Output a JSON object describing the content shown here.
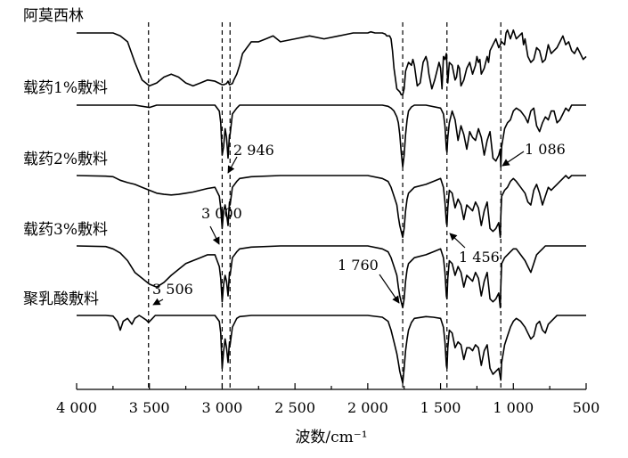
{
  "chart_data": {
    "type": "line",
    "xlabel": "波数/cm⁻¹",
    "xlim": [
      4000,
      500
    ],
    "x_reversed": true,
    "xticks": [
      4000,
      3500,
      3000,
      2500,
      2000,
      1500,
      1000,
      500
    ],
    "xtick_labels": [
      "4 000",
      "3 500",
      "3 000",
      "2 500",
      "2 000",
      "1 500",
      "1 000",
      "500"
    ],
    "y_axis_shown": false,
    "reference_lines": [
      3506,
      3000,
      2946,
      1760,
      1456,
      1086
    ],
    "annotations": [
      {
        "text": "2 946",
        "x": 2946,
        "series": "载药2%敷料"
      },
      {
        "text": "1 086",
        "x": 1086,
        "series": "载药2%敷料"
      },
      {
        "text": "3 000",
        "x": 3000,
        "series": "载药3%敷料"
      },
      {
        "text": "1 456",
        "x": 1456,
        "series": "载药3%敷料"
      },
      {
        "text": "1 760",
        "x": 1760,
        "series": "聚乳酸敷料"
      },
      {
        "text": "3 506",
        "x": 3506,
        "series": "聚乳酸敷料"
      }
    ],
    "series": [
      {
        "name": "阿莫西林",
        "x": [
          4000,
          3750,
          3700,
          3650,
          3600,
          3550,
          3500,
          3450,
          3400,
          3350,
          3300,
          3250,
          3200,
          3150,
          3100,
          3050,
          3000,
          2990,
          2970,
          2960,
          2950,
          2930,
          2920,
          2900,
          2880,
          2860,
          2800,
          2750,
          2700,
          2650,
          2600,
          2500,
          2400,
          2300,
          2200,
          2100,
          2050,
          2000,
          1980,
          1950,
          1920,
          1900,
          1880,
          1870,
          1850,
          1840,
          1830,
          1820,
          1800,
          1780,
          1770,
          1760,
          1750,
          1740,
          1720,
          1700,
          1690,
          1680,
          1660,
          1640,
          1620,
          1600,
          1590,
          1580,
          1560,
          1540,
          1520,
          1510,
          1500,
          1490,
          1480,
          1470,
          1460,
          1450,
          1440,
          1420,
          1400,
          1390,
          1380,
          1370,
          1360,
          1340,
          1320,
          1300,
          1280,
          1260,
          1250,
          1240,
          1230,
          1220,
          1200,
          1180,
          1170,
          1160,
          1140,
          1120,
          1100,
          1080,
          1060,
          1050,
          1040,
          1020,
          1000,
          980,
          960,
          940,
          930,
          920,
          900,
          880,
          860,
          840,
          820,
          800,
          780,
          760,
          740,
          720,
          700,
          680,
          660,
          640,
          620,
          600,
          580,
          560,
          540,
          520,
          500
        ],
        "y": [
          0,
          0,
          0.05,
          0.15,
          0.5,
          0.8,
          0.9,
          0.85,
          0.75,
          0.7,
          0.75,
          0.85,
          0.9,
          0.85,
          0.8,
          0.82,
          0.88,
          0.88,
          0.86,
          0.82,
          0.88,
          0.86,
          0.8,
          0.7,
          0.55,
          0.35,
          0.15,
          0.15,
          0.1,
          0.05,
          0.15,
          0.1,
          0.05,
          0.1,
          0.05,
          0,
          0,
          0,
          -0.02,
          0,
          0,
          0,
          0.02,
          0.05,
          0.05,
          0.1,
          0.3,
          0.6,
          0.95,
          1.0,
          1.05,
          1.05,
          0.95,
          0.65,
          0.5,
          0.55,
          0.45,
          0.55,
          0.9,
          0.85,
          0.5,
          0.4,
          0.5,
          0.7,
          0.95,
          0.8,
          0.6,
          0.5,
          0.6,
          0.95,
          0.4,
          0.45,
          0.35,
          0.85,
          0.5,
          0.55,
          0.8,
          0.75,
          0.55,
          0.6,
          0.9,
          0.8,
          0.6,
          0.5,
          0.7,
          0.55,
          0.4,
          0.5,
          0.45,
          0.7,
          0.6,
          0.4,
          0.5,
          0.3,
          0.2,
          0.1,
          0.25,
          0.15,
          0.2,
          0.0,
          -0.05,
          0.1,
          -0.05,
          0.1,
          0.05,
          0.0,
          0.2,
          0.1,
          0.4,
          0.5,
          0.45,
          0.25,
          0.3,
          0.5,
          0.45,
          0.2,
          0.35,
          0.3,
          0.25,
          0.15,
          0.05,
          0.2,
          0.15,
          0.3,
          0.35,
          0.25,
          0.35,
          0.45,
          0.4
        ]
      },
      {
        "name": "载药1%敷料",
        "x": [
          4000,
          3600,
          3500,
          3450,
          3200,
          3050,
          3020,
          3010,
          3000,
          2990,
          2980,
          2970,
          2960,
          2950,
          2946,
          2930,
          2900,
          2880,
          2800,
          2500,
          2000,
          1900,
          1860,
          1840,
          1820,
          1800,
          1790,
          1780,
          1770,
          1760,
          1750,
          1740,
          1730,
          1720,
          1700,
          1680,
          1600,
          1500,
          1480,
          1470,
          1460,
          1456,
          1450,
          1440,
          1420,
          1400,
          1380,
          1360,
          1340,
          1320,
          1300,
          1280,
          1260,
          1240,
          1220,
          1200,
          1180,
          1160,
          1140,
          1120,
          1100,
          1090,
          1086,
          1080,
          1060,
          1040,
          1020,
          1000,
          980,
          950,
          920,
          900,
          880,
          860,
          840,
          820,
          800,
          780,
          760,
          740,
          720,
          700,
          680,
          660,
          640,
          620,
          600,
          580,
          560,
          540,
          520,
          500
        ],
        "y": [
          0,
          0,
          0.04,
          0,
          0,
          0,
          0.1,
          0.3,
          0.85,
          0.7,
          0.4,
          0.55,
          0.9,
          0.5,
          0.5,
          0.15,
          0.05,
          0,
          0,
          0,
          0,
          0,
          0.02,
          0.05,
          0.1,
          0.2,
          0.3,
          0.5,
          0.8,
          1.05,
          0.85,
          0.5,
          0.25,
          0.1,
          0.03,
          0.0,
          0.0,
          0.05,
          0.15,
          0.35,
          0.75,
          0.8,
          0.55,
          0.3,
          0.1,
          0.25,
          0.6,
          0.35,
          0.5,
          0.75,
          0.45,
          0.55,
          0.6,
          0.4,
          0.55,
          0.85,
          0.6,
          0.45,
          0.9,
          0.95,
          0.85,
          0.75,
          1.05,
          0.7,
          0.4,
          0.3,
          0.25,
          0.1,
          0.05,
          0.1,
          0.2,
          0.3,
          0.1,
          0.05,
          0.35,
          0.45,
          0.3,
          0.2,
          0.25,
          0.1,
          0.1,
          0.3,
          0.25,
          0.15,
          0.05,
          0.1,
          0.0,
          0.0,
          0.0,
          0.0,
          0.0,
          0.0
        ]
      },
      {
        "name": "载药2%敷料",
        "x": [
          4000,
          3800,
          3750,
          3700,
          3650,
          3600,
          3550,
          3500,
          3450,
          3400,
          3350,
          3300,
          3250,
          3200,
          3150,
          3100,
          3050,
          3020,
          3010,
          3000,
          2990,
          2980,
          2970,
          2960,
          2950,
          2946,
          2930,
          2900,
          2880,
          2800,
          2600,
          2400,
          2200,
          2000,
          1900,
          1860,
          1840,
          1820,
          1800,
          1790,
          1780,
          1770,
          1760,
          1750,
          1740,
          1730,
          1720,
          1700,
          1680,
          1600,
          1550,
          1500,
          1480,
          1470,
          1460,
          1456,
          1450,
          1440,
          1420,
          1400,
          1380,
          1360,
          1340,
          1320,
          1300,
          1280,
          1260,
          1240,
          1220,
          1200,
          1180,
          1160,
          1140,
          1120,
          1100,
          1090,
          1086,
          1080,
          1060,
          1040,
          1020,
          1000,
          980,
          950,
          920,
          900,
          880,
          860,
          840,
          820,
          800,
          780,
          760,
          740,
          720,
          700,
          680,
          660,
          640,
          620,
          600,
          580,
          560,
          540,
          520,
          500
        ],
        "y": [
          0,
          0.01,
          0.02,
          0.08,
          0.12,
          0.15,
          0.2,
          0.25,
          0.3,
          0.32,
          0.33,
          0.32,
          0.3,
          0.28,
          0.25,
          0.22,
          0.2,
          0.35,
          0.55,
          0.9,
          0.6,
          0.5,
          0.65,
          0.85,
          0.45,
          0.5,
          0.2,
          0.1,
          0.05,
          0.02,
          0,
          0,
          0,
          0,
          0.05,
          0.1,
          0.2,
          0.35,
          0.5,
          0.7,
          0.85,
          0.95,
          1.05,
          0.9,
          0.6,
          0.4,
          0.3,
          0.25,
          0.2,
          0.15,
          0.1,
          0.05,
          0.2,
          0.45,
          0.8,
          0.85,
          0.55,
          0.25,
          0.3,
          0.55,
          0.4,
          0.5,
          0.75,
          0.5,
          0.55,
          0.6,
          0.45,
          0.55,
          0.85,
          0.6,
          0.45,
          0.9,
          0.95,
          0.9,
          0.8,
          1.05,
          0.7,
          0.35,
          0.25,
          0.2,
          0.1,
          0.05,
          0.1,
          0.2,
          0.3,
          0.45,
          0.5,
          0.25,
          0.15,
          0.3,
          0.5,
          0.35,
          0.2,
          0.25,
          0.2,
          0.15,
          0.1,
          0.05,
          0.0,
          0.05,
          0.0,
          0.0,
          0.0,
          0.0,
          0.0,
          0.0
        ]
      },
      {
        "name": "载药3%敷料",
        "x": [
          4000,
          3800,
          3750,
          3700,
          3650,
          3600,
          3550,
          3500,
          3450,
          3400,
          3350,
          3300,
          3250,
          3200,
          3150,
          3100,
          3050,
          3020,
          3010,
          3000,
          2990,
          2980,
          2970,
          2960,
          2950,
          2946,
          2930,
          2900,
          2880,
          2800,
          2600,
          2400,
          2200,
          2000,
          1900,
          1860,
          1840,
          1820,
          1800,
          1790,
          1780,
          1770,
          1760,
          1750,
          1740,
          1730,
          1720,
          1700,
          1680,
          1600,
          1550,
          1500,
          1480,
          1470,
          1460,
          1456,
          1450,
          1440,
          1420,
          1400,
          1380,
          1360,
          1340,
          1320,
          1300,
          1280,
          1260,
          1240,
          1220,
          1200,
          1180,
          1160,
          1140,
          1120,
          1100,
          1090,
          1086,
          1080,
          1060,
          1040,
          1020,
          1000,
          980,
          950,
          920,
          900,
          880,
          860,
          840,
          820,
          800,
          780,
          760,
          740,
          720,
          700,
          680,
          660,
          640,
          620,
          600,
          580,
          560,
          540,
          520,
          500
        ],
        "y": [
          0,
          0.01,
          0.05,
          0.12,
          0.25,
          0.45,
          0.55,
          0.65,
          0.7,
          0.62,
          0.5,
          0.4,
          0.3,
          0.25,
          0.2,
          0.15,
          0.15,
          0.35,
          0.55,
          0.95,
          0.65,
          0.5,
          0.6,
          0.85,
          0.45,
          0.5,
          0.2,
          0.1,
          0.05,
          0.02,
          0,
          0,
          0,
          0,
          0.05,
          0.1,
          0.2,
          0.35,
          0.5,
          0.7,
          0.85,
          0.95,
          1.05,
          0.9,
          0.6,
          0.4,
          0.3,
          0.25,
          0.2,
          0.15,
          0.1,
          0.05,
          0.2,
          0.45,
          0.85,
          0.9,
          0.55,
          0.25,
          0.3,
          0.5,
          0.35,
          0.45,
          0.7,
          0.5,
          0.55,
          0.6,
          0.45,
          0.55,
          0.85,
          0.6,
          0.45,
          0.9,
          0.95,
          0.9,
          0.8,
          1.05,
          0.7,
          0.3,
          0.2,
          0.15,
          0.1,
          0.05,
          0.05,
          0.15,
          0.25,
          0.35,
          0.45,
          0.3,
          0.15,
          0.1,
          0.05,
          0.0,
          0.0,
          0.0,
          0.0,
          0.0,
          0.0,
          0.0,
          0.0,
          0.0,
          0.0,
          0.0,
          0.0,
          0.0,
          0.0,
          0.0
        ]
      },
      {
        "name": "聚乳酸敷料",
        "x": [
          4000,
          3800,
          3750,
          3720,
          3700,
          3680,
          3650,
          3620,
          3600,
          3570,
          3550,
          3520,
          3506,
          3490,
          3460,
          3400,
          3200,
          3050,
          3020,
          3010,
          3000,
          2990,
          2980,
          2970,
          2960,
          2950,
          2946,
          2930,
          2900,
          2880,
          2800,
          2600,
          2400,
          2200,
          2000,
          1900,
          1860,
          1840,
          1820,
          1800,
          1790,
          1780,
          1770,
          1760,
          1750,
          1740,
          1730,
          1720,
          1700,
          1680,
          1600,
          1550,
          1500,
          1480,
          1470,
          1460,
          1456,
          1450,
          1440,
          1420,
          1400,
          1380,
          1360,
          1340,
          1320,
          1300,
          1280,
          1260,
          1240,
          1220,
          1200,
          1180,
          1160,
          1140,
          1120,
          1100,
          1090,
          1086,
          1080,
          1060,
          1040,
          1020,
          1000,
          980,
          950,
          920,
          900,
          880,
          860,
          840,
          820,
          800,
          780,
          760,
          740,
          720,
          700,
          680,
          660,
          640,
          620,
          600,
          580,
          560,
          540,
          520,
          500
        ],
        "y": [
          0,
          0,
          0.01,
          0.1,
          0.25,
          0.1,
          0.05,
          0.15,
          0.05,
          0.0,
          0.03,
          0.08,
          0.12,
          0.08,
          0.0,
          0,
          0,
          0,
          0.1,
          0.3,
          0.9,
          0.6,
          0.4,
          0.55,
          0.8,
          0.45,
          0.5,
          0.2,
          0.05,
          0.02,
          0,
          0,
          0,
          0,
          0,
          0.03,
          0.1,
          0.25,
          0.45,
          0.65,
          0.8,
          0.95,
          1.05,
          1.15,
          0.9,
          0.6,
          0.4,
          0.25,
          0.12,
          0.05,
          0.02,
          0.03,
          0.05,
          0.2,
          0.45,
          0.85,
          0.9,
          0.55,
          0.25,
          0.3,
          0.55,
          0.45,
          0.5,
          0.75,
          0.55,
          0.55,
          0.6,
          0.5,
          0.55,
          0.85,
          0.6,
          0.5,
          0.9,
          1.0,
          0.95,
          0.9,
          1.05,
          1.1,
          0.8,
          0.5,
          0.35,
          0.2,
          0.1,
          0.05,
          0.1,
          0.2,
          0.3,
          0.4,
          0.35,
          0.15,
          0.1,
          0.25,
          0.3,
          0.15,
          0.1,
          0.05,
          0.0,
          0.0,
          0.0,
          0.0,
          0.0,
          0.0,
          0.0,
          0.0,
          0.0,
          0.0,
          0.0
        ]
      }
    ]
  }
}
